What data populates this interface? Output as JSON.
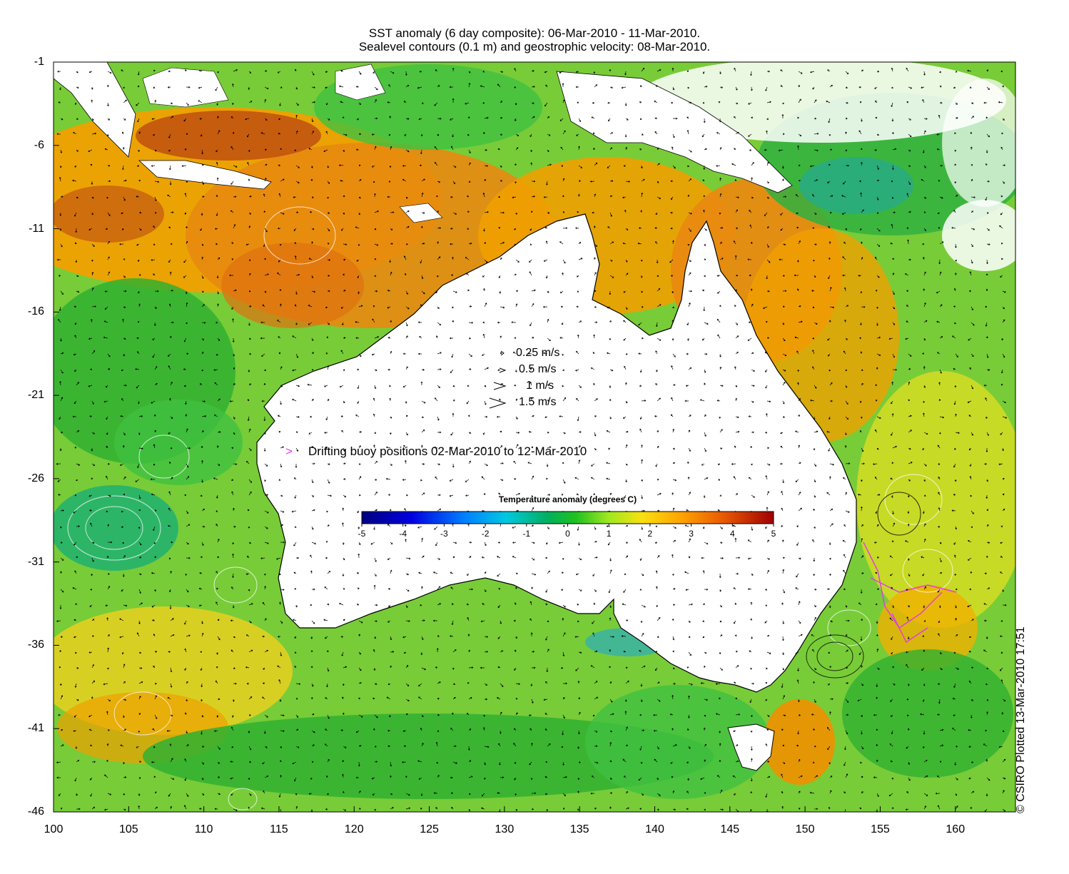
{
  "title_line1": "SST anomaly (6 day composite): 06-Mar-2010 - 11-Mar-2010.",
  "title_line2": "Sealevel contours (0.1 m) and geostrophic velocity: 08-Mar-2010.",
  "axes": {
    "x_ticks": [
      "100",
      "105",
      "110",
      "115",
      "120",
      "125",
      "130",
      "135",
      "140",
      "145",
      "150",
      "155",
      "160"
    ],
    "y_ticks": [
      "-1",
      "-6",
      "-11",
      "-16",
      "-21",
      "-26",
      "-31",
      "-36",
      "-41",
      "-46"
    ],
    "lon_range": [
      100,
      164
    ],
    "lat_range": [
      -46,
      -1
    ]
  },
  "velocity_legend": [
    {
      "label": "0.25 m/s",
      "speed": 0.25
    },
    {
      "label": "0.5 m/s",
      "speed": 0.5
    },
    {
      "label": "1 m/s",
      "speed": 1
    },
    {
      "label": "1.5 m/s",
      "speed": 1.5
    }
  ],
  "buoy_legend": {
    "marker": ">",
    "label": "Drifting buoy positions 02-Mar-2010 to 12-Mar-2010",
    "color": "#e040e0"
  },
  "colorbar": {
    "title": "Temperature anomaly (degrees C)",
    "ticks": [
      "-5",
      "-4",
      "-3",
      "-2",
      "-1",
      "0",
      "1",
      "2",
      "3",
      "4",
      "5"
    ],
    "range": [
      -5,
      5
    ],
    "colors": [
      "#00007f",
      "#0000d0",
      "#0050ff",
      "#00b0ff",
      "#00d0b0",
      "#00b040",
      "#40d020",
      "#c0f020",
      "#ffd000",
      "#ff9000",
      "#e05000",
      "#b01000"
    ]
  },
  "credit": "© CSIRO Plotted 13-Mar-2010 17:51",
  "map_colors": {
    "ocean_warm": "#f0a000",
    "ocean_hot": "#e07010",
    "ocean_neutral": "#80d040",
    "ocean_cool": "#30b030",
    "ocean_yellow": "#e8e020",
    "land": "#ffffff",
    "coast": "#000000"
  }
}
